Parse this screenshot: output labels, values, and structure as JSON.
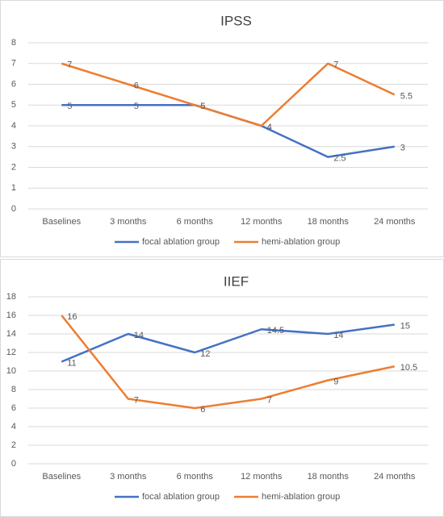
{
  "chart_data": [
    {
      "type": "line",
      "title": "IPSS",
      "categories": [
        "Baselines",
        "3 months",
        "6 months",
        "12 months",
        "18 months",
        "24 months"
      ],
      "series": [
        {
          "name": "focal ablation group",
          "color": "#4472c4",
          "values": [
            5,
            5,
            5,
            4,
            2.5,
            3
          ]
        },
        {
          "name": "hemi-ablation group",
          "color": "#ed7d31",
          "values": [
            7,
            6,
            5,
            4,
            7,
            5.5
          ]
        }
      ],
      "ylim": [
        0,
        8
      ],
      "yticks": [
        0,
        1,
        2,
        3,
        4,
        5,
        6,
        7,
        8
      ],
      "grid": true,
      "legend": "bottom"
    },
    {
      "type": "line",
      "title": "IIEF",
      "categories": [
        "Baselines",
        "3 months",
        "6 months",
        "12 months",
        "18 months",
        "24 months"
      ],
      "series": [
        {
          "name": "focal ablation group",
          "color": "#4472c4",
          "values": [
            11,
            14,
            12,
            14.5,
            14,
            15
          ]
        },
        {
          "name": "hemi-ablation group",
          "color": "#ed7d31",
          "values": [
            16,
            7,
            6,
            7,
            9,
            10.5
          ]
        }
      ],
      "ylim": [
        0,
        18
      ],
      "yticks": [
        0,
        2,
        4,
        6,
        8,
        10,
        12,
        14,
        16,
        18
      ],
      "grid": true,
      "legend": "bottom"
    }
  ]
}
